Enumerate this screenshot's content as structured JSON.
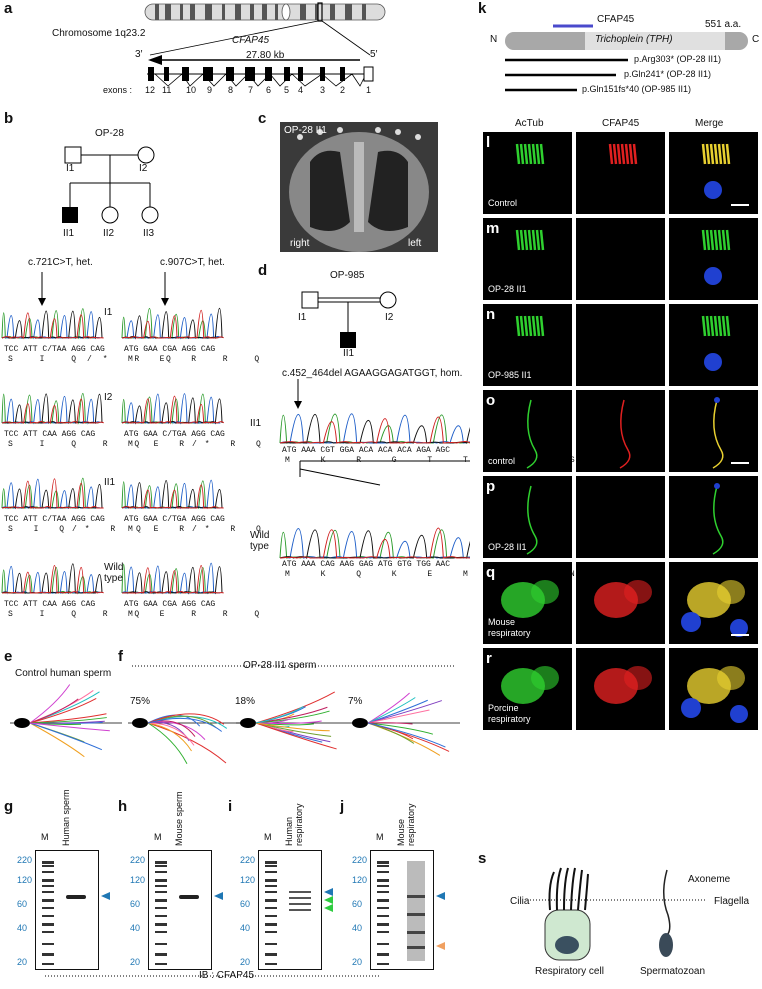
{
  "panel_labels": {
    "a": "a",
    "b": "b",
    "c": "c",
    "d": "d",
    "e": "e",
    "f": "f",
    "g": "g",
    "h": "h",
    "i": "i",
    "j": "j",
    "k": "k",
    "l": "l",
    "m": "m",
    "n": "n",
    "o": "o",
    "p": "p",
    "q": "q",
    "r": "r",
    "s": "s"
  },
  "a": {
    "chromosome": "Chromosome 1q23.2",
    "gene": "CFAP45",
    "end3": "3′",
    "end5": "5′",
    "length": "27.80 kb",
    "exons_label": "exons :",
    "exons": [
      "12",
      "11",
      "10",
      "9",
      "8",
      "7",
      "6",
      "5",
      "4",
      "3",
      "2",
      "1"
    ]
  },
  "b": {
    "family": "OP-28",
    "individuals": [
      "I1",
      "I2",
      "II1",
      "II2",
      "II3"
    ],
    "mut1": "c.721C>T, het.",
    "mut2": "c.907C>T, het.",
    "rows": [
      "I1",
      "I2",
      "II1",
      "Wild type"
    ],
    "seq1": "TCC ATT C/TAA AGG CAG",
    "seq2": "ATG GAA C/TGA AGG CAG",
    "seq2wt": "ATG GAA CGA AGG CAG",
    "seq1wt": "TCC ATT CAA AGG CAG",
    "aa1": [
      "S I Q/* R Q",
      "S I Q R Q",
      "S I Q/* R Q",
      "S I Q R Q"
    ],
    "aa2": [
      "M E R R Q",
      "M E R/* R Q",
      "M E R/* R Q",
      "M E R R Q"
    ]
  },
  "c": {
    "title": "OP-28 II1",
    "right": "right",
    "left": "left"
  },
  "d": {
    "family": "OP-985",
    "individuals": [
      "I1",
      "I2",
      "II1"
    ],
    "mutation": "c.452_464del AGAAGGAGATGGT, hom.",
    "row_patient": "II1",
    "row_wt": "Wild type",
    "seq_patient": "ATG AAA CGT GGA ACA ACA ACA AGA AGC",
    "aa_patient": "M K R G T T T R S",
    "seq_wt": "ATG AAA CAG AAG GAG ATG GTG TGG AAC",
    "aa_wt": "M K Q K E M V W N"
  },
  "e": {
    "title": "Control human sperm"
  },
  "f": {
    "title": "OP-28 II1 sperm",
    "percents": [
      "75%",
      "18%",
      "7%"
    ]
  },
  "blots": [
    {
      "id": "g",
      "lane": "Human sperm"
    },
    {
      "id": "h",
      "lane": "Mouse sperm"
    },
    {
      "id": "i",
      "lane": "Human respiratory"
    },
    {
      "id": "j",
      "lane": "Mouse respiratory"
    }
  ],
  "blot_marker": "M",
  "blot_mw": [
    "220",
    "120",
    "60",
    "40",
    "20"
  ],
  "ib_label": "IB : CFAP45",
  "k": {
    "protein": "CFAP45",
    "length": "551 a.a.",
    "n": "N",
    "c": "C",
    "domain": "Trichoplein (TPH)",
    "variants": [
      "p.Arg303*  (OP-28 II1)",
      "p.Gln241*  (OP-28 II1)",
      "p.Gln151fs*40  (OP-985 II1)"
    ]
  },
  "micro_cols": [
    "AcTub",
    "CFAP45",
    "Merge"
  ],
  "micro_rows": [
    "Control",
    "OP-28 II1",
    "OP-985 II1",
    "control",
    "OP-28 II1",
    "Mouse respiratory",
    "Porcine respiratory"
  ],
  "s": {
    "axoneme": "Axoneme",
    "cilia": "Cilia",
    "flagella": "Flagella",
    "cell": "Respiratory cell",
    "sperm": "Spermatozoan"
  },
  "colors": {
    "green": "#33cc33",
    "red": "#e02020",
    "blue": "#1f6fc8",
    "arrow_blue": "#1f77b4",
    "arrow_green": "#2ecc40",
    "arrow_orange": "#f0a060"
  }
}
